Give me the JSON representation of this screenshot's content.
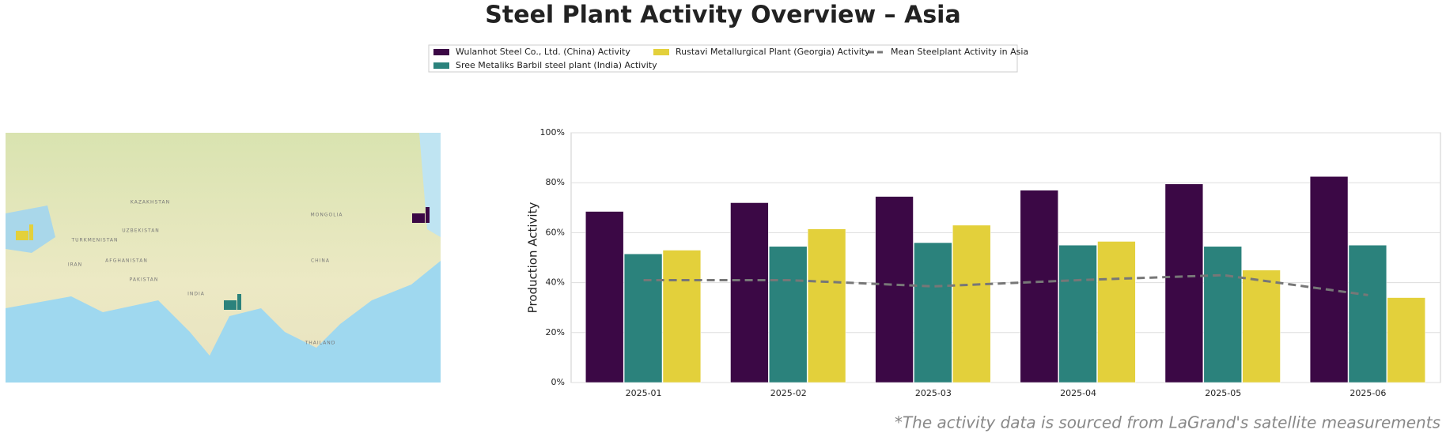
{
  "chart_data": {
    "type": "bar",
    "title": "Steel Plant Activity Overview – Asia",
    "ylabel": "Production Activity",
    "footnote": "*The activity data is sourced from LaGrand's satellite measurements",
    "categories": [
      "2025-01",
      "2025-02",
      "2025-03",
      "2025-04",
      "2025-05",
      "2025-06"
    ],
    "series": [
      {
        "name": "Wulanhot Steel Co., Ltd. (China) Activity",
        "color": "#3b0845",
        "values": [
          68.5,
          72,
          74.5,
          77,
          79.5,
          82.5
        ]
      },
      {
        "name": "Sree Metaliks Barbil steel plant (India) Activity",
        "color": "#2b827c",
        "values": [
          51.5,
          54.5,
          56,
          55,
          54.5,
          55
        ]
      },
      {
        "name": "Rustavi Metallurgical Plant (Georgia) Activity",
        "color": "#e3d03b",
        "values": [
          53,
          61.5,
          63,
          56.5,
          45,
          34
        ]
      },
      {
        "name": "Mean Steelplant Activity in Asia",
        "color": "#777777",
        "type": "line",
        "dashed": true,
        "values": [
          41,
          41,
          38.5,
          41,
          43,
          35
        ]
      }
    ],
    "ylim": [
      0,
      100
    ],
    "yticks": [
      {
        "value": 0,
        "label": "0%"
      },
      {
        "value": 20,
        "label": "20%"
      },
      {
        "value": 40,
        "label": "40%"
      },
      {
        "value": 60,
        "label": "60%"
      },
      {
        "value": 80,
        "label": "80%"
      },
      {
        "value": 100,
        "label": "100%"
      }
    ],
    "grid": true,
    "legend": "top",
    "map_labels": [
      "KAZAKHSTAN",
      "MONGOLIA",
      "CHINA",
      "INDIA",
      "IRAN",
      "AFGHANISTAN",
      "PAKISTAN",
      "TURKMENISTAN",
      "UZBEKISTAN",
      "THAILAND"
    ]
  }
}
